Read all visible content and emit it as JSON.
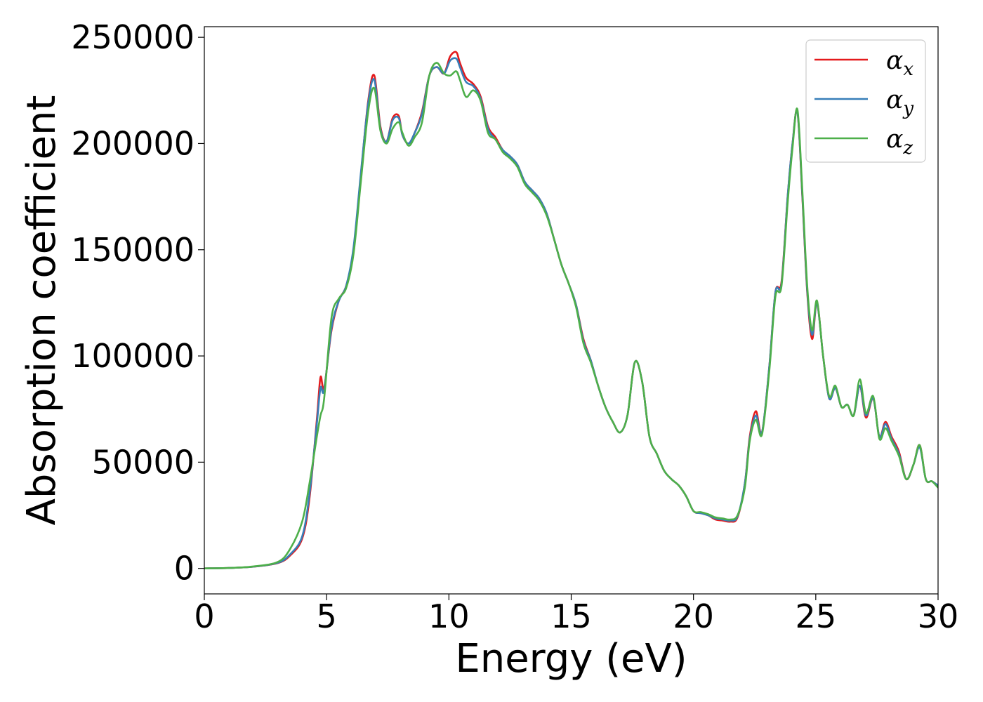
{
  "chart_data": {
    "type": "line",
    "title": "",
    "xlabel": "Energy (eV)",
    "ylabel": "Absorption coefficient",
    "xlim": [
      0,
      30
    ],
    "ylim": [
      -12000,
      255000
    ],
    "xticks": [
      0,
      5,
      10,
      15,
      20,
      25,
      30
    ],
    "yticks": [
      0,
      50000,
      100000,
      150000,
      200000,
      250000
    ],
    "grid": false,
    "legend_position": "top-right",
    "series": [
      {
        "name": "α_x",
        "name_main": "α",
        "name_sub": "x",
        "color": "#e41a1c",
        "x": [
          0,
          1,
          2,
          3,
          3.5,
          4,
          4.3,
          4.6,
          4.75,
          4.9,
          5.2,
          5.5,
          5.8,
          6.1,
          6.4,
          6.7,
          6.95,
          7.2,
          7.45,
          7.7,
          7.95,
          8.1,
          8.35,
          8.6,
          8.9,
          9.2,
          9.5,
          9.8,
          10.05,
          10.3,
          10.45,
          10.7,
          11,
          11.3,
          11.6,
          11.9,
          12.2,
          12.5,
          12.8,
          13.1,
          13.4,
          13.7,
          14,
          14.3,
          14.6,
          14.9,
          15.2,
          15.5,
          15.8,
          16.1,
          16.4,
          16.7,
          17,
          17.3,
          17.6,
          17.9,
          18.2,
          18.5,
          18.8,
          19.1,
          19.4,
          19.7,
          20,
          20.3,
          20.6,
          20.9,
          21.2,
          21.5,
          21.8,
          22.1,
          22.3,
          22.55,
          22.8,
          23.1,
          23.35,
          23.6,
          23.85,
          24.05,
          24.25,
          24.45,
          24.65,
          24.85,
          25.05,
          25.3,
          25.55,
          25.8,
          26.05,
          26.3,
          26.55,
          26.8,
          27.05,
          27.35,
          27.6,
          27.85,
          28.1,
          28.4,
          28.7,
          29,
          29.25,
          29.5,
          29.75,
          30
        ],
        "y": [
          0,
          200,
          800,
          2500,
          6000,
          14000,
          33000,
          70000,
          90000,
          85000,
          112000,
          126000,
          133000,
          150000,
          185000,
          220000,
          232000,
          208000,
          201000,
          212000,
          213000,
          204000,
          200000,
          205000,
          215000,
          232000,
          236000,
          233000,
          241000,
          243000,
          238000,
          231000,
          228000,
          222000,
          208000,
          203000,
          197000,
          194000,
          190000,
          182000,
          178000,
          174000,
          167000,
          155000,
          143000,
          134000,
          124000,
          108000,
          98000,
          86000,
          76000,
          69000,
          64000,
          72000,
          97000,
          88000,
          62000,
          54000,
          46000,
          42000,
          39000,
          34000,
          27000,
          26000,
          25000,
          23000,
          22500,
          22000,
          24000,
          40000,
          62000,
          74000,
          64000,
          95000,
          130000,
          135000,
          175000,
          200000,
          215000,
          175000,
          130000,
          108000,
          125000,
          100000,
          80000,
          85000,
          76000,
          77000,
          72000,
          86000,
          71000,
          80000,
          62000,
          69000,
          62000,
          55000,
          42000,
          49000,
          58000,
          42000,
          41000,
          39000
        ]
      },
      {
        "name": "α_y",
        "name_main": "α",
        "name_sub": "y",
        "color": "#377eb8",
        "x": [
          0,
          1,
          2,
          3,
          3.5,
          4,
          4.3,
          4.6,
          4.75,
          4.9,
          5.2,
          5.5,
          5.8,
          6.1,
          6.4,
          6.7,
          6.95,
          7.2,
          7.45,
          7.7,
          7.95,
          8.1,
          8.35,
          8.6,
          8.9,
          9.2,
          9.5,
          9.8,
          10.05,
          10.3,
          10.45,
          10.7,
          11,
          11.3,
          11.6,
          11.9,
          12.2,
          12.5,
          12.8,
          13.1,
          13.4,
          13.7,
          14,
          14.3,
          14.6,
          14.9,
          15.2,
          15.5,
          15.8,
          16.1,
          16.4,
          16.7,
          17,
          17.3,
          17.6,
          17.9,
          18.2,
          18.5,
          18.8,
          19.1,
          19.4,
          19.7,
          20,
          20.3,
          20.6,
          20.9,
          21.2,
          21.5,
          21.8,
          22.1,
          22.3,
          22.55,
          22.8,
          23.1,
          23.35,
          23.6,
          23.85,
          24.05,
          24.25,
          24.45,
          24.65,
          24.85,
          25.05,
          25.3,
          25.55,
          25.8,
          26.05,
          26.3,
          26.55,
          26.8,
          27.05,
          27.35,
          27.6,
          27.85,
          28.1,
          28.4,
          28.7,
          29,
          29.25,
          29.5,
          29.75,
          30
        ],
        "y": [
          0,
          200,
          800,
          2600,
          6500,
          15000,
          35000,
          68000,
          85000,
          84000,
          113000,
          126000,
          133000,
          151000,
          186000,
          219000,
          230000,
          207000,
          201000,
          211000,
          212000,
          204000,
          200000,
          205000,
          214000,
          232000,
          236000,
          233000,
          239000,
          240000,
          236000,
          229000,
          227000,
          221000,
          207000,
          202000,
          197000,
          194000,
          190000,
          182000,
          178000,
          174000,
          167000,
          155000,
          143000,
          134000,
          124000,
          107000,
          98000,
          86000,
          76000,
          69000,
          64000,
          72000,
          97000,
          88000,
          62000,
          54000,
          46000,
          42000,
          39000,
          34000,
          27000,
          26000,
          25000,
          23500,
          23000,
          22500,
          24500,
          40000,
          61000,
          72000,
          64000,
          95000,
          130000,
          134000,
          175000,
          200000,
          215000,
          176000,
          131000,
          110000,
          125000,
          100000,
          80000,
          85000,
          76000,
          77000,
          72000,
          86000,
          72000,
          80000,
          62000,
          68000,
          61000,
          54000,
          42000,
          49000,
          57000,
          42000,
          41000,
          39000
        ]
      },
      {
        "name": "α_z",
        "name_main": "α",
        "name_sub": "z",
        "color": "#4daf4a",
        "x": [
          0,
          1,
          2,
          3,
          3.5,
          4,
          4.3,
          4.6,
          4.75,
          4.9,
          5.2,
          5.5,
          5.8,
          6.1,
          6.4,
          6.7,
          6.95,
          7.2,
          7.45,
          7.7,
          7.95,
          8.1,
          8.35,
          8.6,
          8.9,
          9.2,
          9.5,
          9.8,
          10.05,
          10.3,
          10.45,
          10.7,
          11,
          11.3,
          11.6,
          11.9,
          12.2,
          12.5,
          12.8,
          13.1,
          13.4,
          13.7,
          14,
          14.3,
          14.6,
          14.9,
          15.2,
          15.5,
          15.8,
          16.1,
          16.4,
          16.7,
          17,
          17.3,
          17.6,
          17.9,
          18.2,
          18.5,
          18.8,
          19.1,
          19.4,
          19.7,
          20,
          20.3,
          20.6,
          20.9,
          21.2,
          21.5,
          21.8,
          22.1,
          22.3,
          22.55,
          22.8,
          23.1,
          23.35,
          23.6,
          23.85,
          24.05,
          24.25,
          24.45,
          24.65,
          24.85,
          25.05,
          25.3,
          25.55,
          25.8,
          26.05,
          26.3,
          26.55,
          26.8,
          27.05,
          27.35,
          27.6,
          27.85,
          28.1,
          28.4,
          28.7,
          29,
          29.25,
          29.5,
          29.75,
          30
        ],
        "y": [
          0,
          200,
          900,
          3000,
          9000,
          22000,
          40000,
          62000,
          72000,
          80000,
          118000,
          127000,
          132000,
          148000,
          182000,
          215000,
          226000,
          206000,
          200000,
          207000,
          210000,
          205000,
          199000,
          203000,
          210000,
          232000,
          238000,
          233000,
          232000,
          234000,
          230000,
          222000,
          225000,
          220000,
          205000,
          202000,
          196000,
          193000,
          189000,
          181000,
          177000,
          173000,
          166000,
          155000,
          143000,
          134000,
          123000,
          106000,
          97000,
          86000,
          76000,
          69000,
          64000,
          72000,
          97000,
          88000,
          62000,
          54000,
          46000,
          42000,
          39000,
          34000,
          27000,
          26500,
          25500,
          24000,
          23500,
          23000,
          25000,
          38000,
          60000,
          70000,
          63000,
          93000,
          128000,
          133000,
          172000,
          198000,
          216000,
          178000,
          133000,
          112000,
          126000,
          100000,
          81000,
          86000,
          76000,
          77000,
          72000,
          89000,
          73000,
          81000,
          61000,
          66000,
          60000,
          53000,
          42000,
          49000,
          58000,
          42000,
          41000,
          38000
        ]
      }
    ]
  }
}
